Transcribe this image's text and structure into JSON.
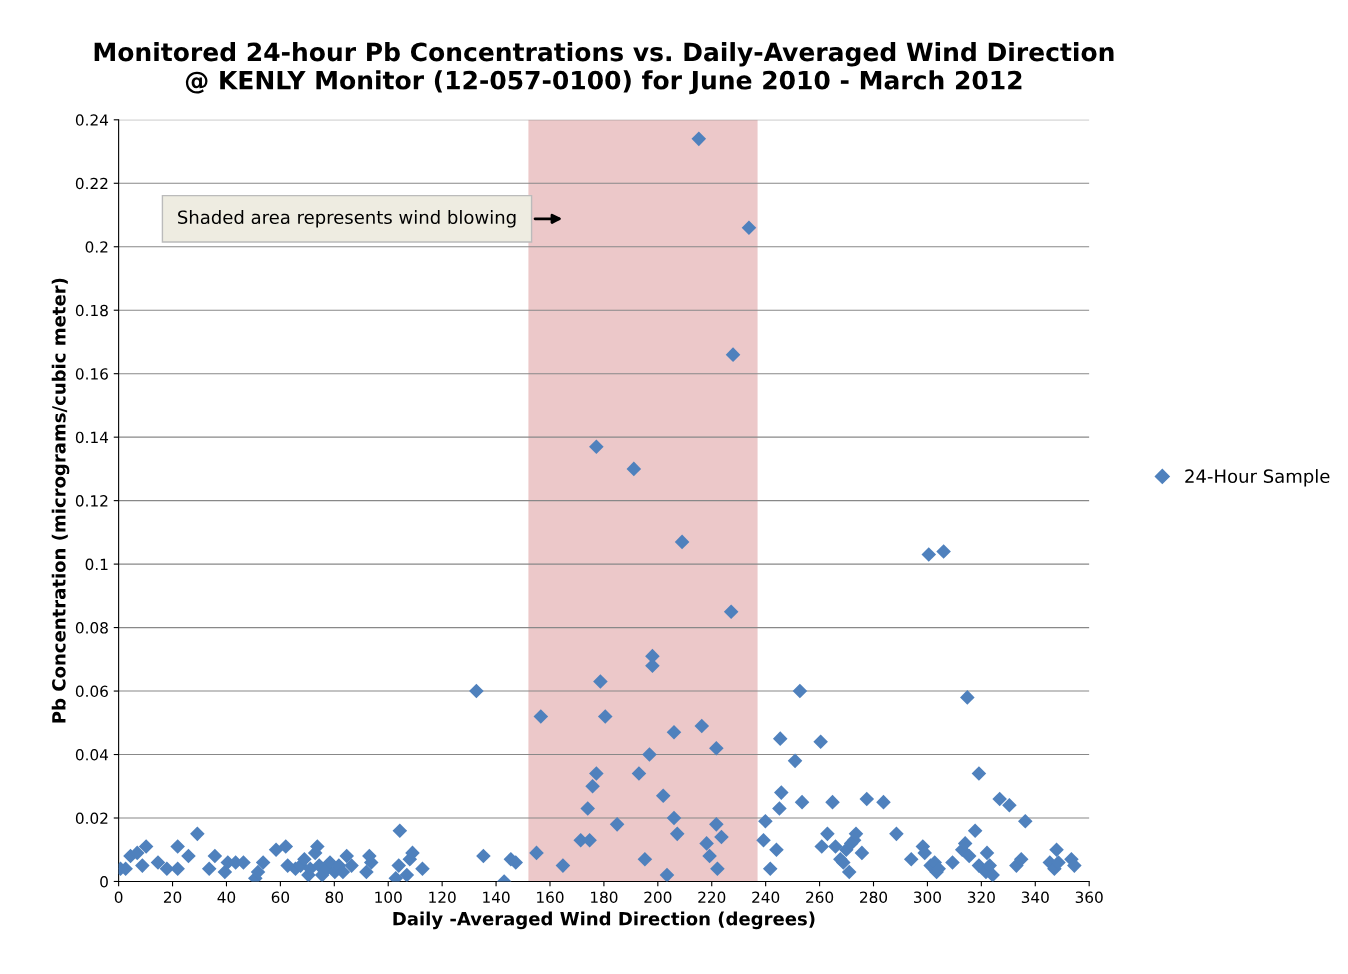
{
  "chart_data": {
    "type": "scatter",
    "title": "Monitored 24-hour Pb Concentrations vs. Daily-Averaged Wind Direction\n@ KENLY Monitor (12-057-0100) for June 2010 - March 2012",
    "xlabel": "Daily -Averaged Wind Direction (degrees)",
    "ylabel": "Pb Concentration (micrograms/cubic meter)",
    "annotations": [
      "Shaded area represents wind blowing"
    ],
    "xlim": [
      0,
      360
    ],
    "xticks": [
      0,
      20,
      40,
      60,
      80,
      100,
      120,
      140,
      160,
      180,
      200,
      220,
      240,
      260,
      280,
      300,
      320,
      340,
      360
    ],
    "ylim": [
      0,
      0.24
    ],
    "yticks": [
      0,
      0.02,
      0.04,
      0.06,
      0.08,
      0.1,
      0.12,
      0.14,
      0.16,
      0.18,
      0.2,
      0.22,
      0.24
    ],
    "grid": "y",
    "legend": "right",
    "marker": "diamond",
    "bands": [
      {
        "axis": "x",
        "from": 152,
        "to": 237,
        "color": "#ecc8c9"
      }
    ],
    "series": [
      {
        "name": "24-Hour Sample",
        "color": "#4f81bd",
        "x": [
          0.7,
          2.6,
          4.4,
          6.9,
          8.8,
          10.2,
          14.6,
          17.9,
          21.9,
          21.9,
          25.9,
          29.2,
          33.6,
          35.7,
          39.4,
          40.5,
          43.4,
          46.3,
          50.7,
          51.7,
          53.6,
          58.4,
          62,
          62.7,
          65.6,
          67.5,
          68.9,
          70.4,
          71.1,
          72.9,
          73.7,
          74.4,
          75.5,
          77.3,
          78.4,
          80.2,
          81.7,
          83.2,
          84.6,
          86.4,
          91.9,
          93,
          93.7,
          102.8,
          104.3,
          103.9,
          106.9,
          108,
          109,
          112.7,
          132.7,
          135.3,
          143,
          145.5,
          147.3,
          155,
          156.6,
          164.8,
          171.4,
          174,
          174.7,
          175.8,
          177.2,
          177.2,
          178.7,
          180.5,
          184.9,
          191.1,
          193,
          195.2,
          196.9,
          198,
          198,
          202,
          203.4,
          206,
          206,
          207.2,
          209,
          215.2,
          216.3,
          218.1,
          219.2,
          221.7,
          221.7,
          222.1,
          223.6,
          227.2,
          227.9,
          233.8,
          239.2,
          239.9,
          241.7,
          244,
          245.1,
          245.4,
          245.8,
          250.9,
          252.7,
          253.5,
          260.4,
          260.8,
          262.9,
          264.8,
          265.9,
          267.7,
          268.8,
          269.9,
          271,
          271.7,
          272.8,
          273.5,
          275.7,
          277.5,
          283.7,
          288.5,
          294,
          298.3,
          299,
          300.5,
          301.2,
          302.7,
          303.4,
          304.2,
          306,
          309.3,
          312.9,
          314,
          314.8,
          315.5,
          317.7,
          319.1,
          319.1,
          321.7,
          322.1,
          323.1,
          324.2,
          326.8,
          330.4,
          333,
          334.8,
          336.3,
          345.4,
          347.1,
          347.9,
          348.6,
          353.4,
          354.5
        ],
        "values": [
          0.004,
          0.004,
          0.008,
          0.009,
          0.005,
          0.011,
          0.006,
          0.004,
          0.011,
          0.004,
          0.008,
          0.015,
          0.004,
          0.008,
          0.003,
          0.006,
          0.006,
          0.006,
          0.001,
          0.003,
          0.006,
          0.01,
          0.011,
          0.005,
          0.004,
          0.005,
          0.007,
          0.002,
          0.004,
          0.009,
          0.011,
          0.005,
          0.002,
          0.004,
          0.006,
          0.003,
          0.005,
          0.003,
          0.008,
          0.005,
          0.003,
          0.008,
          0.006,
          0.001,
          0.016,
          0.005,
          0.002,
          0.007,
          0.009,
          0.004,
          0.06,
          0.008,
          0.0,
          0.007,
          0.006,
          0.009,
          0.052,
          0.005,
          0.013,
          0.023,
          0.013,
          0.03,
          0.034,
          0.137,
          0.063,
          0.052,
          0.018,
          0.13,
          0.034,
          0.007,
          0.04,
          0.071,
          0.068,
          0.027,
          0.002,
          0.047,
          0.02,
          0.015,
          0.107,
          0.234,
          0.049,
          0.012,
          0.008,
          0.042,
          0.018,
          0.004,
          0.014,
          0.085,
          0.166,
          0.206,
          0.013,
          0.019,
          0.004,
          0.01,
          0.023,
          0.045,
          0.028,
          0.038,
          0.06,
          0.025,
          0.044,
          0.011,
          0.015,
          0.025,
          0.011,
          0.007,
          0.006,
          0.01,
          0.003,
          0.012,
          0.013,
          0.015,
          0.009,
          0.026,
          0.025,
          0.015,
          0.007,
          0.011,
          0.009,
          0.103,
          0.005,
          0.006,
          0.003,
          0.004,
          0.104,
          0.006,
          0.01,
          0.012,
          0.058,
          0.008,
          0.016,
          0.034,
          0.005,
          0.003,
          0.009,
          0.005,
          0.002,
          0.026,
          0.024,
          0.005,
          0.007,
          0.019,
          0.006,
          0.004,
          0.01,
          0.006,
          0.007,
          0.005
        ]
      }
    ]
  }
}
